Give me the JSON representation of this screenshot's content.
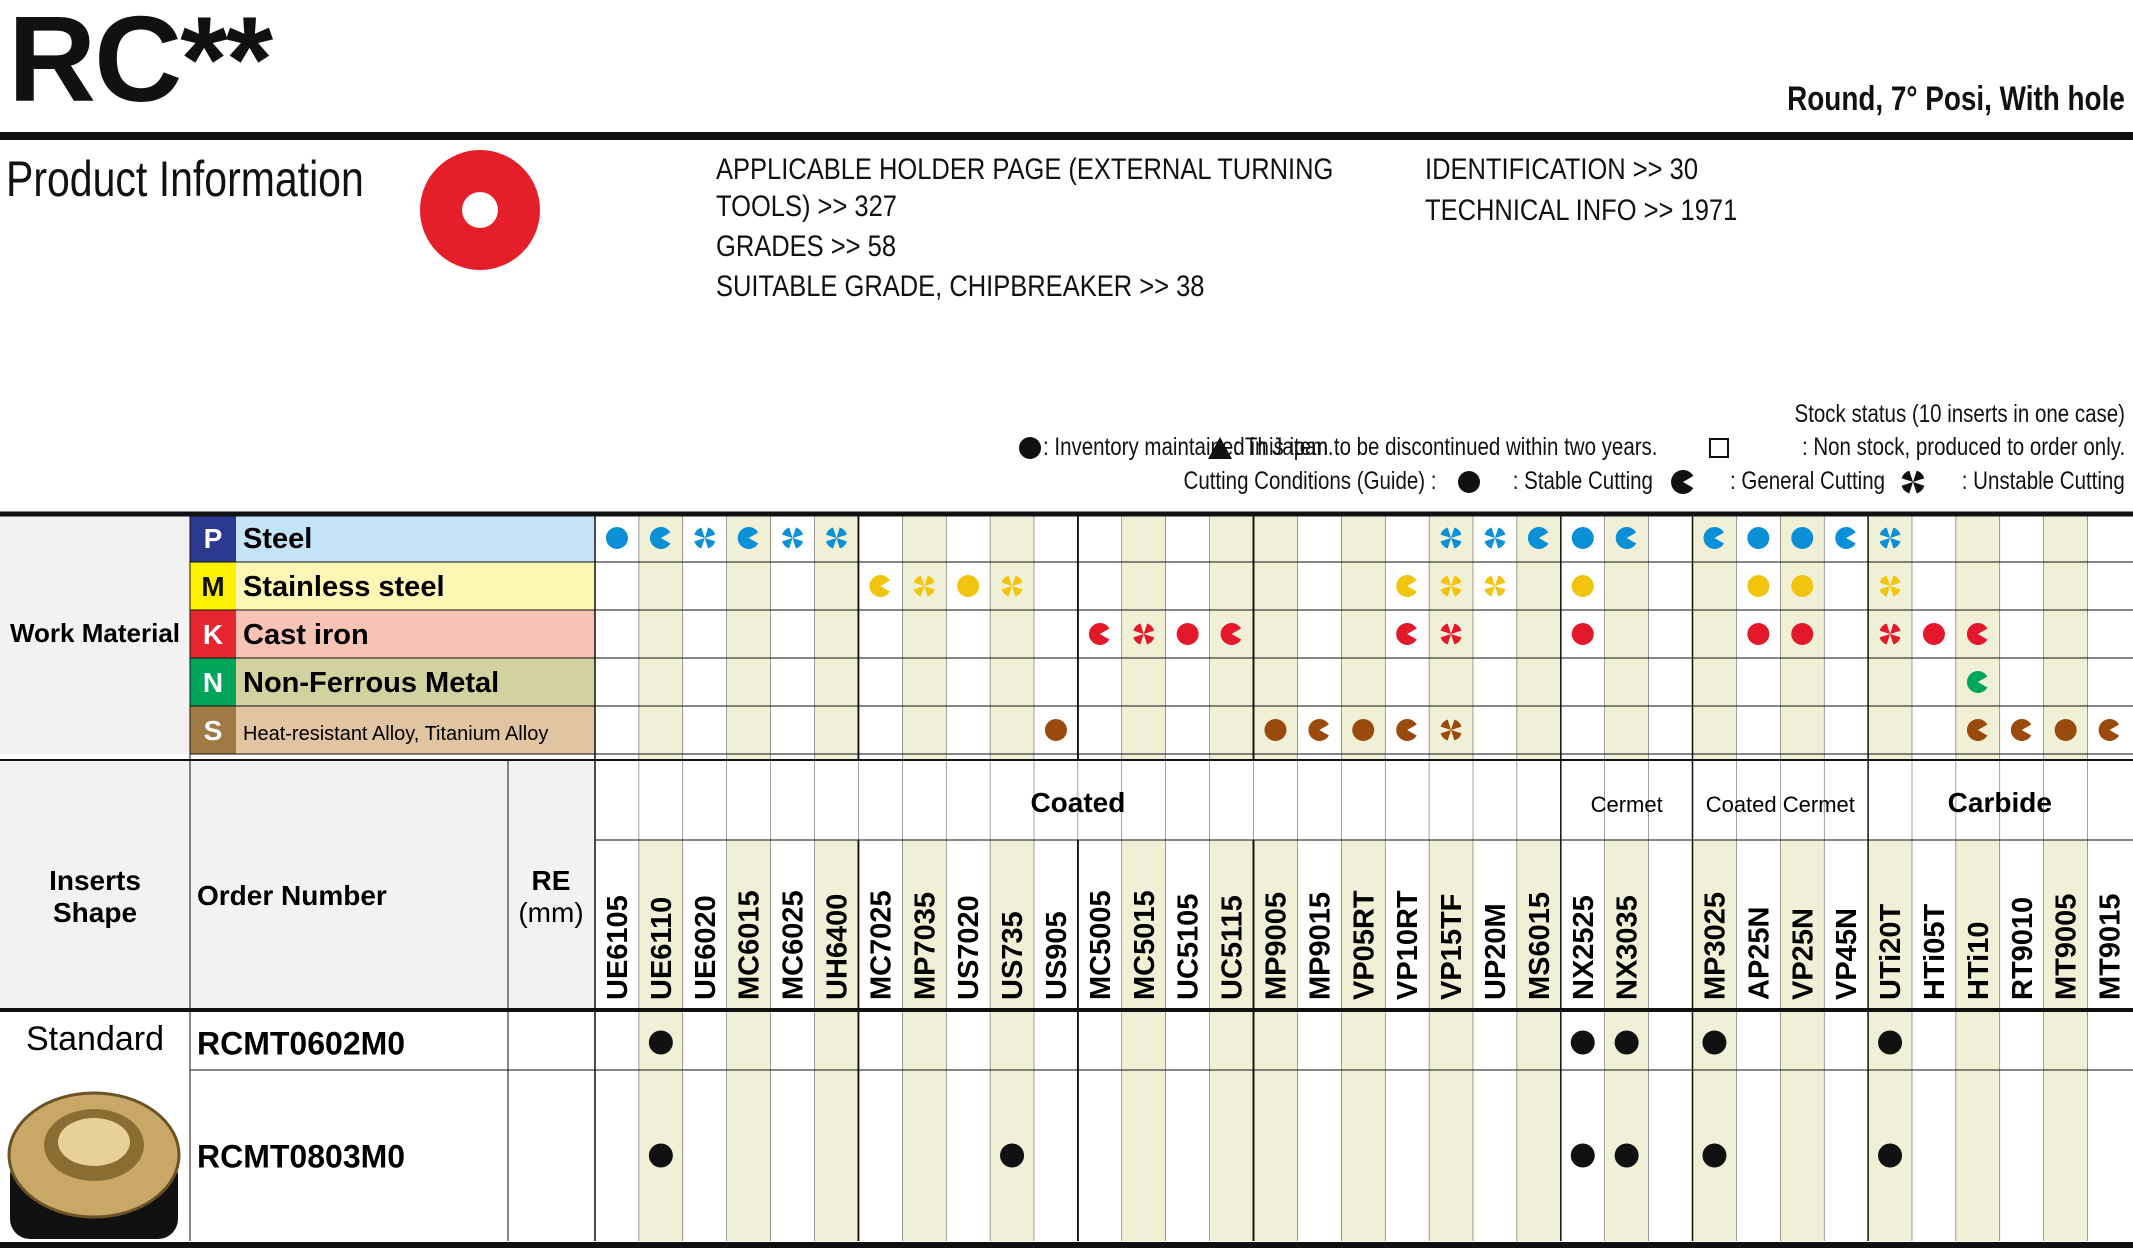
{
  "header": {
    "series": "RC**",
    "subtitle": "Round, 7° Posi, With hole",
    "section_title": "Product Information"
  },
  "references": {
    "left": [
      "APPLICABLE HOLDER PAGE (EXTERNAL TURNING",
      "TOOLS) >> 327",
      "GRADES >> 58",
      "SUITABLE GRADE, CHIPBREAKER >> 38"
    ],
    "right": [
      "IDENTIFICATION >> 30",
      "TECHNICAL INFO >> 1971"
    ]
  },
  "legend": {
    "stock_title": "Stock status (10 inserts in one case)",
    "inventory": ": Inventory maintained in Japan.",
    "discontinued": ": This item to be discontinued within two years.",
    "non_stock": ": Non stock, produced to order only.",
    "cutting_label": "Cutting Conditions (Guide) :",
    "stable": ": Stable Cutting",
    "general": ": General Cutting",
    "unstable": ": Unstable Cutting"
  },
  "work_material": {
    "label": "Work Material",
    "rows": [
      {
        "letter": "P",
        "name": "Steel",
        "letter_bg": "#2b3990",
        "name_bg": "#c3e4f6",
        "mark_color": "#0b8fd6"
      },
      {
        "letter": "M",
        "name": "Stainless steel",
        "letter_bg": "#fff200",
        "name_bg": "#fdf7b5",
        "mark_color": "#f1c40f"
      },
      {
        "letter": "K",
        "name": "Cast iron",
        "letter_bg": "#e8262f",
        "name_bg": "#f7c3b4",
        "mark_color": "#e3182a"
      },
      {
        "letter": "N",
        "name": "Non-Ferrous Metal",
        "letter_bg": "#00a55a",
        "name_bg": "#d2d2a0",
        "mark_color": "#00a65c"
      },
      {
        "letter": "S",
        "name": "Heat-resistant Alloy, Titanium Alloy",
        "letter_bg": "#a07a45",
        "name_bg": "#e1c4a2",
        "mark_color": "#9a4a0c"
      }
    ]
  },
  "table": {
    "col_headers": {
      "shape": "Inserts Shape",
      "order": "Order Number",
      "re": "RE (mm)"
    },
    "groups": [
      {
        "name": "Coated",
        "start": 0,
        "count": 22
      },
      {
        "name": "Cermet",
        "start": 22,
        "count": 3
      },
      {
        "name": "Coated Cermet",
        "start": 25,
        "count": 4
      },
      {
        "name": "Carbide",
        "start": 29,
        "count": 6
      }
    ],
    "grades": [
      "UE6105",
      "UE6110",
      "UE6020",
      "MC6015",
      "MC6025",
      "UH6400",
      "MC7025",
      "MP7035",
      "US7020",
      "US735",
      "US905",
      "MC5005",
      "MC5015",
      "UC5105",
      "UC5115",
      "MP9005",
      "MP9015",
      "VP05RT",
      "VP10RT",
      "VP15TF",
      "UP20M",
      "MS6015",
      "NX2525",
      "NX3035",
      "",
      "MP3025",
      "AP25N",
      "VP25N",
      "VP45N",
      "UTi20T",
      "HTi05T",
      "HTi10",
      "RT9010",
      "MT9005",
      "MT9015"
    ],
    "shaded_columns": [
      1,
      3,
      5,
      7,
      9,
      12,
      14,
      15,
      17,
      19,
      21,
      23,
      25,
      27,
      29,
      31,
      33
    ],
    "conditions": {
      "P": [
        "S",
        "G",
        "U",
        "G",
        "U",
        "U",
        "",
        "",
        "",
        "",
        "",
        "",
        "",
        "",
        "",
        "",
        "",
        "",
        "",
        "U",
        "U",
        "G",
        "S",
        "G",
        "",
        "G",
        "S",
        "S",
        "G",
        "U",
        "",
        "",
        "",
        "",
        ""
      ],
      "M": [
        "",
        "",
        "",
        "",
        "",
        "",
        "G",
        "U",
        "S",
        "U",
        "",
        "",
        "",
        "",
        "",
        "",
        "",
        "",
        "G",
        "U",
        "U",
        "",
        "S",
        "",
        "",
        "",
        "S",
        "S",
        "",
        "U",
        "",
        "",
        "",
        "",
        ""
      ],
      "K": [
        "",
        "",
        "",
        "",
        "",
        "",
        "",
        "",
        "",
        "",
        "",
        "G",
        "U",
        "S",
        "G",
        "",
        "",
        "",
        "G",
        "U",
        "",
        "",
        "S",
        "",
        "",
        "",
        "S",
        "S",
        "",
        "U",
        "S",
        "G",
        "",
        "",
        ""
      ],
      "N": [
        "",
        "",
        "",
        "",
        "",
        "",
        "",
        "",
        "",
        "",
        "",
        "",
        "",
        "",
        "",
        "",
        "",
        "",
        "",
        "",
        "",
        "",
        "",
        "",
        "",
        "",
        "",
        "",
        "",
        "",
        "",
        "G",
        "",
        "",
        ""
      ],
      "S": [
        "",
        "",
        "",
        "",
        "",
        "",
        "",
        "",
        "",
        "",
        "S",
        "",
        "",
        "",
        "",
        "S",
        "G",
        "S",
        "G",
        "U",
        "",
        "",
        "",
        "",
        "",
        "",
        "",
        "",
        "",
        "",
        "",
        "G",
        "G",
        "S",
        "G"
      ]
    },
    "shape_label": "Standard",
    "rows": [
      {
        "order": "RCMT0602M0",
        "re": "",
        "stock": [
          1,
          22,
          23,
          25,
          29
        ]
      },
      {
        "order": "RCMT0803M0",
        "re": "",
        "stock": [
          1,
          9,
          22,
          23,
          25,
          29
        ]
      }
    ]
  }
}
